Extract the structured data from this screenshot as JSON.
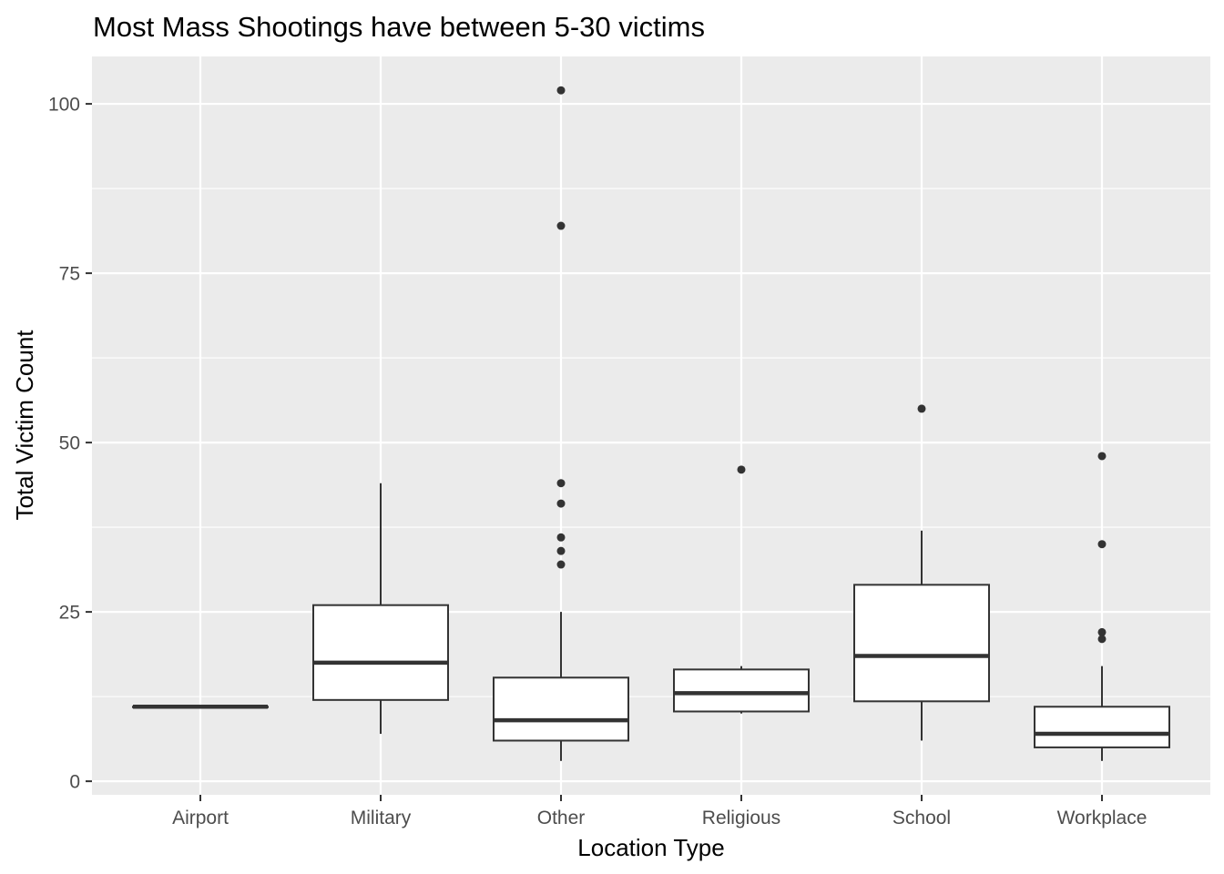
{
  "chart_data": {
    "type": "boxplot",
    "title": "Most Mass Shootings have between 5-30 victims",
    "xlabel": "Location Type",
    "ylabel": "Total Victim Count",
    "ylim": [
      -2,
      107
    ],
    "yticks": [
      0,
      25,
      50,
      75,
      100
    ],
    "grid": true,
    "categories": [
      "Airport",
      "Military",
      "Other",
      "Religious",
      "School",
      "Workplace"
    ],
    "boxes": [
      {
        "category": "Airport",
        "min": 11,
        "q1": 11,
        "median": 11,
        "q3": 11,
        "max": 11,
        "outliers": []
      },
      {
        "category": "Military",
        "min": 7,
        "q1": 12,
        "median": 17.5,
        "q3": 26,
        "max": 44,
        "outliers": []
      },
      {
        "category": "Other",
        "min": 3,
        "q1": 6,
        "median": 9,
        "q3": 15.3,
        "max": 25,
        "outliers": [
          32,
          34,
          36,
          41,
          44,
          82,
          102
        ]
      },
      {
        "category": "Religious",
        "min": 10,
        "q1": 10.3,
        "median": 13,
        "q3": 16.5,
        "max": 17,
        "outliers": [
          46
        ]
      },
      {
        "category": "School",
        "min": 6,
        "q1": 11.8,
        "median": 18.5,
        "q3": 29,
        "max": 37,
        "outliers": [
          55
        ]
      },
      {
        "category": "Workplace",
        "min": 3,
        "q1": 5,
        "median": 7,
        "q3": 11,
        "max": 17,
        "outliers": [
          21,
          22,
          35,
          48
        ]
      }
    ],
    "colors": {
      "panel": "#ebebeb",
      "grid": "#ffffff",
      "box_fill": "#ffffff",
      "box_line": "#333333",
      "point": "#333333"
    }
  }
}
